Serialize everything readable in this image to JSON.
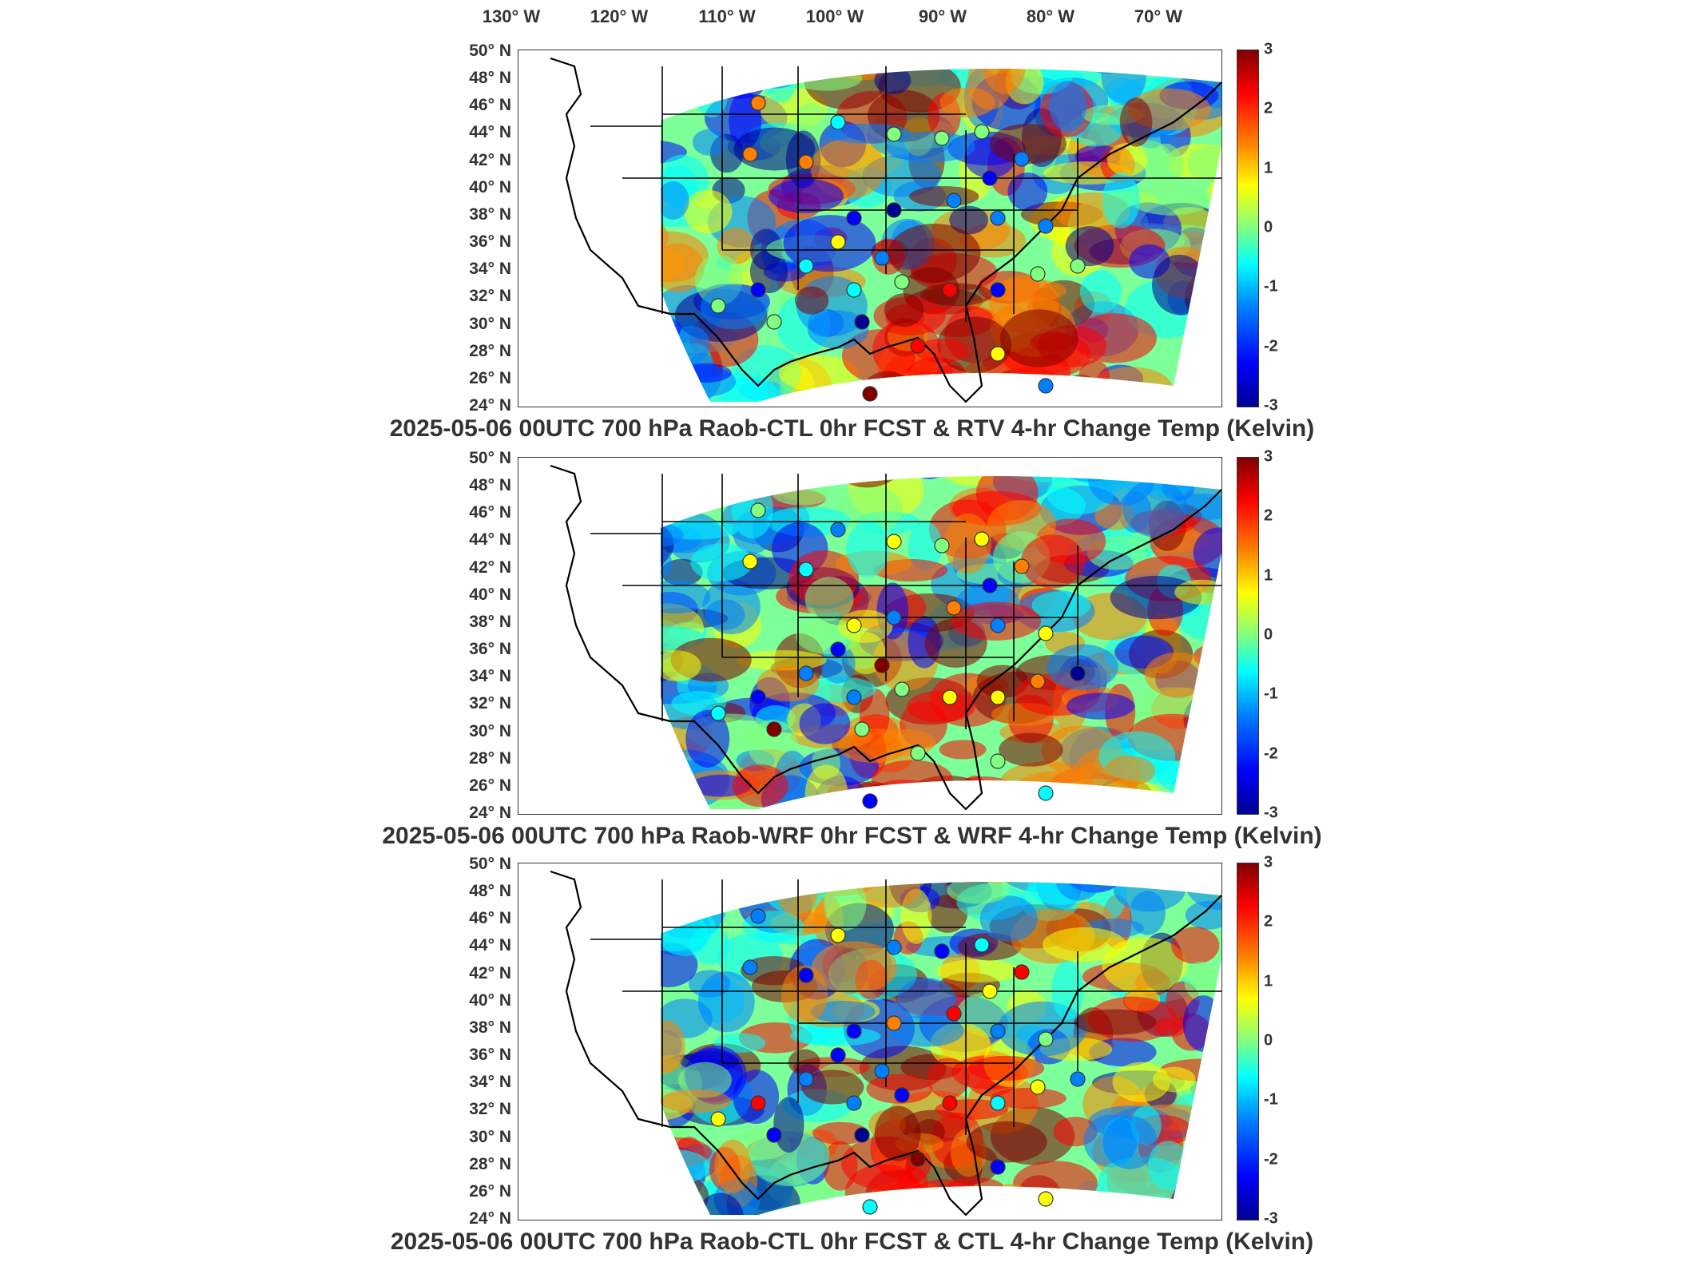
{
  "lon_axis": [
    "130° W",
    "120° W",
    "110° W",
    "100° W",
    "90° W",
    "80° W",
    "70° W"
  ],
  "lat_axis": [
    "50° N",
    "48° N",
    "46° N",
    "44° N",
    "42° N",
    "40° N",
    "38° N",
    "36° N",
    "34° N",
    "32° N",
    "30° N",
    "28° N",
    "26° N",
    "24° N"
  ],
  "colorbar": {
    "ticks": [
      "3",
      "2",
      "1",
      "0",
      "-1",
      "-2",
      "-3"
    ],
    "min": -3,
    "max": 3,
    "colors": [
      "#00008f",
      "#0000ff",
      "#0080ff",
      "#00ffff",
      "#80ff80",
      "#ffff00",
      "#ff8000",
      "#ff0000",
      "#800000"
    ]
  },
  "panels": [
    {
      "title": "2025-05-06 00UTC 700 hPa Raob-CTL 0hr FCST & RTV 4-hr Change Temp (Kelvin)"
    },
    {
      "title": "2025-05-06 00UTC 700 hPa Raob-WRF 0hr FCST & WRF 4-hr Change Temp (Kelvin)"
    },
    {
      "title": "2025-05-06 00UTC 700 hPa Raob-CTL 0hr FCST & CTL 4-hr Change Temp (Kelvin)"
    }
  ]
}
